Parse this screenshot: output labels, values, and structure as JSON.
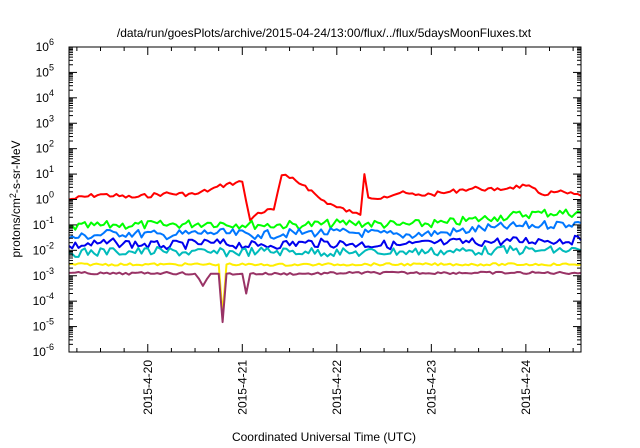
{
  "chart_data": {
    "type": "line",
    "title": "/data/run/goesPlots/archive/2015-04-24/13:00/flux/../flux/5daysMoonFluxes.txt",
    "xlabel": "Coordinated Universal Time (UTC)",
    "ylabel": {
      "prefix": "protons/cm",
      "sup": "2",
      "suffix": "-s-sr-MeV"
    },
    "xlim": [
      "2015-04-19 04:00",
      "2015-04-24 14:00"
    ],
    "x_ticks": [
      "2015-4-20",
      "2015-4-21",
      "2015-4-22",
      "2015-4-23",
      "2015-4-24"
    ],
    "y_scale": "log",
    "ylim": [
      1e-06,
      1000000.0
    ],
    "y_ticks": [
      {
        "base": "10",
        "exp": "6"
      },
      {
        "base": "10",
        "exp": "5"
      },
      {
        "base": "10",
        "exp": "4"
      },
      {
        "base": "10",
        "exp": "3"
      },
      {
        "base": "10",
        "exp": "2"
      },
      {
        "base": "10",
        "exp": "1"
      },
      {
        "base": "10",
        "exp": "0"
      },
      {
        "base": "10",
        "exp": "-1"
      },
      {
        "base": "10",
        "exp": "-2"
      },
      {
        "base": "10",
        "exp": "-3"
      },
      {
        "base": "10",
        "exp": "-4"
      },
      {
        "base": "10",
        "exp": "-5"
      },
      {
        "base": "10",
        "exp": "-6"
      }
    ],
    "grid": false,
    "legend": "none",
    "series": [
      {
        "color": "#ff0000",
        "x": [
          "2015-04-19 04:00",
          "2015-04-19 12:00",
          "2015-04-19 20:00",
          "2015-04-20 04:00",
          "2015-04-20 12:00",
          "2015-04-20 16:00",
          "2015-04-20 20:00",
          "2015-04-21 00:00",
          "2015-04-21 02:00",
          "2015-04-21 04:00",
          "2015-04-21 08:00",
          "2015-04-21 10:00",
          "2015-04-21 12:00",
          "2015-04-21 16:00",
          "2015-04-21 20:00",
          "2015-04-22 00:00",
          "2015-04-22 04:00",
          "2015-04-22 06:00",
          "2015-04-22 07:00",
          "2015-04-22 08:00",
          "2015-04-22 12:00",
          "2015-04-22 16:00",
          "2015-04-22 20:00",
          "2015-04-23 00:00",
          "2015-04-23 04:00",
          "2015-04-23 08:00",
          "2015-04-23 12:00",
          "2015-04-23 16:00",
          "2015-04-23 20:00",
          "2015-04-24 00:00",
          "2015-04-24 04:00",
          "2015-04-24 08:00",
          "2015-04-24 14:00"
        ],
        "y": [
          1.0,
          1.6,
          1.2,
          1.7,
          1.6,
          2.5,
          4.0,
          5.0,
          0.15,
          0.3,
          0.4,
          9.0,
          7.0,
          3.5,
          1.0,
          0.5,
          0.3,
          0.25,
          10.0,
          1.2,
          1.3,
          1.8,
          1.5,
          1.6,
          1.9,
          2.5,
          2.8,
          2.3,
          3.0,
          3.5,
          1.6,
          2.0,
          1.4
        ]
      },
      {
        "color": "#00ff00",
        "x": [
          "2015-04-19 04:00",
          "2015-04-19 16:00",
          "2015-04-20 04:00",
          "2015-04-20 16:00",
          "2015-04-21 04:00",
          "2015-04-21 16:00",
          "2015-04-22 04:00",
          "2015-04-22 16:00",
          "2015-04-23 04:00",
          "2015-04-23 16:00",
          "2015-04-24 04:00",
          "2015-04-24 14:00"
        ],
        "y": [
          0.08,
          0.1,
          0.1,
          0.12,
          0.1,
          0.1,
          0.12,
          0.1,
          0.12,
          0.2,
          0.3,
          0.3
        ]
      },
      {
        "color": "#0077ff",
        "x": [
          "2015-04-19 04:00",
          "2015-04-19 16:00",
          "2015-04-20 04:00",
          "2015-04-20 16:00",
          "2015-04-21 04:00",
          "2015-04-21 16:00",
          "2015-04-22 04:00",
          "2015-04-22 16:00",
          "2015-04-23 04:00",
          "2015-04-23 16:00",
          "2015-04-24 04:00",
          "2015-04-24 14:00"
        ],
        "y": [
          0.03,
          0.05,
          0.04,
          0.05,
          0.04,
          0.05,
          0.05,
          0.04,
          0.05,
          0.08,
          0.1,
          0.12
        ]
      },
      {
        "color": "#0000ee",
        "x": [
          "2015-04-19 04:00",
          "2015-04-19 16:00",
          "2015-04-20 04:00",
          "2015-04-20 16:00",
          "2015-04-21 04:00",
          "2015-04-21 16:00",
          "2015-04-22 04:00",
          "2015-04-22 16:00",
          "2015-04-23 04:00",
          "2015-04-23 16:00",
          "2015-04-24 04:00",
          "2015-04-24 14:00"
        ],
        "y": [
          0.015,
          0.02,
          0.015,
          0.02,
          0.015,
          0.02,
          0.018,
          0.016,
          0.02,
          0.022,
          0.025,
          0.025
        ]
      },
      {
        "color": "#00bbbb",
        "x": [
          "2015-04-19 04:00",
          "2015-04-19 16:00",
          "2015-04-20 04:00",
          "2015-04-20 16:00",
          "2015-04-21 04:00",
          "2015-04-21 16:00",
          "2015-04-22 04:00",
          "2015-04-22 16:00",
          "2015-04-23 04:00",
          "2015-04-23 16:00",
          "2015-04-24 04:00",
          "2015-04-24 14:00"
        ],
        "y": [
          0.008,
          0.009,
          0.009,
          0.008,
          0.009,
          0.009,
          0.008,
          0.009,
          0.009,
          0.01,
          0.01,
          0.01
        ]
      },
      {
        "color": "#ffee00",
        "x": [
          "2015-04-19 04:00",
          "2015-04-20 04:00",
          "2015-04-20 18:00",
          "2015-04-20 19:00",
          "2015-04-20 20:00",
          "2015-04-21 04:00",
          "2015-04-22 04:00",
          "2015-04-23 04:00",
          "2015-04-24 04:00",
          "2015-04-24 14:00"
        ],
        "y": [
          0.0028,
          0.0028,
          0.0028,
          3e-05,
          0.0028,
          0.0027,
          0.0028,
          0.0028,
          0.0028,
          0.0028
        ]
      },
      {
        "color": "#993366",
        "x": [
          "2015-04-19 04:00",
          "2015-04-19 16:00",
          "2015-04-20 04:00",
          "2015-04-20 12:00",
          "2015-04-20 14:00",
          "2015-04-20 16:00",
          "2015-04-20 18:00",
          "2015-04-20 19:00",
          "2015-04-20 20:00",
          "2015-04-21 00:00",
          "2015-04-21 01:00",
          "2015-04-21 02:00",
          "2015-04-21 16:00",
          "2015-04-22 04:00",
          "2015-04-23 04:00",
          "2015-04-24 04:00",
          "2015-04-24 14:00"
        ],
        "y": [
          0.0013,
          0.0012,
          0.0013,
          0.0012,
          0.0004,
          0.0012,
          0.0012,
          1.5e-05,
          0.0012,
          0.0012,
          0.0002,
          0.0012,
          0.0012,
          0.0013,
          0.0013,
          0.0013,
          0.0013
        ]
      }
    ]
  }
}
